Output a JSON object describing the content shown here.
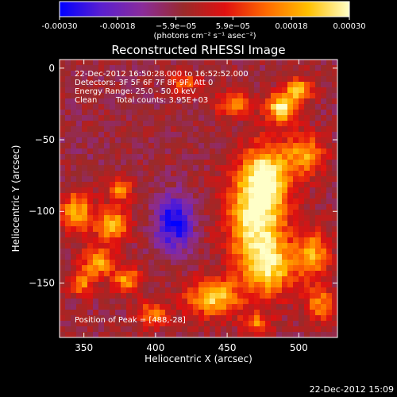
{
  "colorbar": {
    "tick_labels": [
      "-0.00030",
      "-0.00018",
      "−5.9e−05",
      "5.9e−05",
      "0.00018",
      "0.00030"
    ],
    "tick_values": [
      -0.0003,
      -0.00018,
      -5.9e-05,
      5.9e-05,
      0.00018,
      0.0003
    ],
    "range": [
      -0.0003,
      0.0003
    ],
    "units_label": "(photons cm⁻² s⁻¹ asec⁻²)",
    "gradient_colors": [
      "#0000ff",
      "#5a1fd0",
      "#8a2c9a",
      "#9a2a2a",
      "#e01010",
      "#ff6a00",
      "#ffc000",
      "#ffffc8"
    ]
  },
  "chart_data": {
    "type": "heatmap",
    "title": "Reconstructed RHESSI Image",
    "xlabel": "Heliocentric X (arcsec)",
    "ylabel": "Heliocentric Y (arcsec)",
    "xlim": [
      333,
      527
    ],
    "ylim": [
      -188,
      6
    ],
    "x_ticks": [
      350,
      400,
      450,
      500
    ],
    "y_ticks": [
      0,
      -50,
      -100,
      -150
    ],
    "x_tick_labels": [
      "350",
      "400",
      "450",
      "500"
    ],
    "y_tick_labels": [
      "0",
      "−50",
      "−100",
      "−150"
    ],
    "annotations": [
      "22-Dec-2012 16:50:28.000 to 16:52:52.000",
      "Detectors: 3F 5F 6F 7F 8F 9F, Att 0",
      "Energy Range: 25.0 - 50.0 keV",
      "Clean",
      "Total counts: 3.95E+03"
    ],
    "peak_label": "Position of Peak = [488,-28]",
    "peak_position": [
      488,
      -28
    ],
    "background_value": -5e-05,
    "sources": [
      {
        "x": 470,
        "y": -105,
        "peak": 0.00028,
        "sx": 14,
        "sy": 24
      },
      {
        "x": 478,
        "y": -75,
        "peak": 0.00022,
        "sx": 12,
        "sy": 16
      },
      {
        "x": 488,
        "y": -28,
        "peak": 0.0003,
        "sx": 7,
        "sy": 7
      },
      {
        "x": 500,
        "y": -15,
        "peak": 0.0002,
        "sx": 7,
        "sy": 6
      },
      {
        "x": 505,
        "y": -60,
        "peak": 0.00018,
        "sx": 9,
        "sy": 10
      },
      {
        "x": 480,
        "y": -140,
        "peak": 0.0002,
        "sx": 13,
        "sy": 14
      },
      {
        "x": 440,
        "y": -160,
        "peak": 0.00024,
        "sx": 13,
        "sy": 9
      },
      {
        "x": 510,
        "y": -130,
        "peak": 0.00018,
        "sx": 8,
        "sy": 12
      },
      {
        "x": 515,
        "y": -165,
        "peak": 0.00016,
        "sx": 7,
        "sy": 8
      },
      {
        "x": 345,
        "y": -100,
        "peak": 0.0002,
        "sx": 8,
        "sy": 10
      },
      {
        "x": 370,
        "y": -110,
        "peak": 0.00022,
        "sx": 8,
        "sy": 8
      },
      {
        "x": 360,
        "y": -135,
        "peak": 0.0002,
        "sx": 8,
        "sy": 7
      },
      {
        "x": 380,
        "y": -148,
        "peak": 0.00018,
        "sx": 7,
        "sy": 6
      },
      {
        "x": 348,
        "y": -150,
        "peak": 0.00016,
        "sx": 6,
        "sy": 6
      },
      {
        "x": 375,
        "y": -85,
        "peak": 0.00016,
        "sx": 6,
        "sy": 6
      },
      {
        "x": 455,
        "y": -25,
        "peak": 0.00014,
        "sx": 10,
        "sy": 6
      },
      {
        "x": 420,
        "y": -10,
        "peak": 0.00012,
        "sx": 7,
        "sy": 5
      },
      {
        "x": 398,
        "y": -172,
        "peak": 0.00016,
        "sx": 8,
        "sy": 6
      },
      {
        "x": 470,
        "y": -178,
        "peak": 0.00014,
        "sx": 7,
        "sy": 5
      },
      {
        "x": 413,
        "y": -108,
        "peak": -0.0003,
        "sx": 9,
        "sy": 13
      },
      {
        "x": 350,
        "y": -60,
        "peak": -6e-05,
        "sx": 12,
        "sy": 14
      },
      {
        "x": 425,
        "y": -60,
        "peak": -5e-05,
        "sx": 12,
        "sy": 12
      }
    ]
  },
  "footer": {
    "timestamp": "22-Dec-2012 15:09"
  }
}
